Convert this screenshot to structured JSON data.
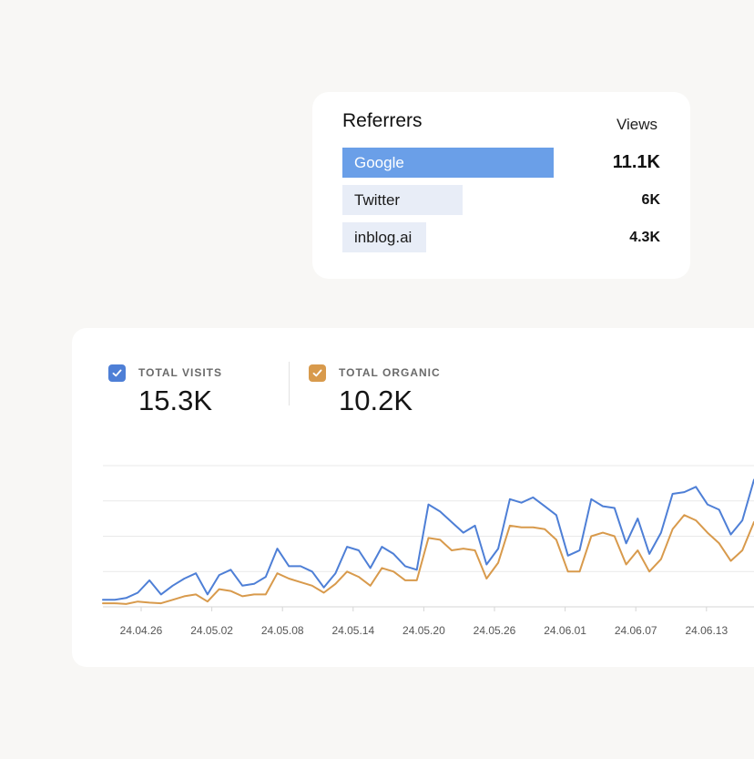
{
  "referrers": {
    "title": "Referrers",
    "views_label": "Views",
    "items": [
      {
        "name": "Google",
        "value": "11.1K",
        "share": 0.636
      },
      {
        "name": "Twitter",
        "value": "6K",
        "share": 0.364
      },
      {
        "name": "inblog.ai",
        "value": "4.3K",
        "share": 0.252
      }
    ],
    "colors": {
      "primary": "#6a9fe8",
      "secondary": "#e8edf7"
    }
  },
  "metrics": {
    "visits": {
      "label": "TOTAL VISITS",
      "value": "15.3K",
      "color": "#4e7fd6",
      "checked": true
    },
    "organic": {
      "label": "TOTAL ORGANIC",
      "value": "10.2K",
      "color": "#d89a4c",
      "checked": true
    }
  },
  "chart_data": {
    "type": "line",
    "x_tick_labels": [
      "24.04.26",
      "24.05.02",
      "24.05.08",
      "24.05.14",
      "24.05.20",
      "24.05.26",
      "24.06.01",
      "24.06.07",
      "24.06.13"
    ],
    "ylim": [
      0,
      4
    ],
    "grid": true,
    "series": [
      {
        "name": "TOTAL VISITS",
        "color": "#4e7fd6",
        "values": [
          0.2,
          0.2,
          0.25,
          0.4,
          0.75,
          0.35,
          0.6,
          0.8,
          0.95,
          0.35,
          0.9,
          1.05,
          0.6,
          0.65,
          0.85,
          1.65,
          1.15,
          1.15,
          1.0,
          0.55,
          0.95,
          1.7,
          1.6,
          1.1,
          1.7,
          1.5,
          1.15,
          1.05,
          2.9,
          2.7,
          2.4,
          2.1,
          2.3,
          1.2,
          1.65,
          3.05,
          2.95,
          3.1,
          2.85,
          2.6,
          1.45,
          1.6,
          3.05,
          2.85,
          2.8,
          1.8,
          2.5,
          1.5,
          2.1,
          3.2,
          3.25,
          3.4,
          2.9,
          2.75,
          2.05,
          2.45,
          3.6
        ]
      },
      {
        "name": "TOTAL ORGANIC",
        "color": "#d89a4c",
        "values": [
          0.1,
          0.1,
          0.08,
          0.15,
          0.12,
          0.1,
          0.2,
          0.3,
          0.35,
          0.15,
          0.5,
          0.45,
          0.3,
          0.35,
          0.35,
          0.95,
          0.8,
          0.7,
          0.6,
          0.4,
          0.65,
          1.0,
          0.85,
          0.6,
          1.1,
          1.0,
          0.75,
          0.75,
          1.95,
          1.9,
          1.6,
          1.65,
          1.6,
          0.8,
          1.25,
          2.3,
          2.25,
          2.25,
          2.2,
          1.9,
          1.0,
          1.0,
          2.0,
          2.1,
          2.0,
          1.2,
          1.6,
          1.0,
          1.35,
          2.2,
          2.6,
          2.45,
          2.1,
          1.8,
          1.3,
          1.6,
          2.4
        ]
      }
    ]
  }
}
